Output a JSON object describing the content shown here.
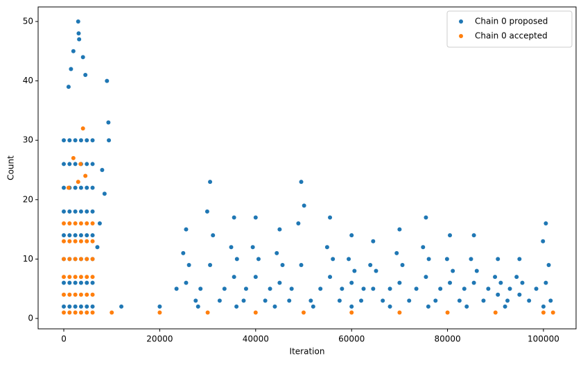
{
  "chart_data": {
    "type": "scatter",
    "x_label": "Iteration",
    "y_label": "Count",
    "xlim": [
      -5350,
      106800
    ],
    "ylim": [
      -1.75,
      52.45
    ],
    "xticks": [
      0,
      20000,
      40000,
      60000,
      80000,
      100000
    ],
    "yticks": [
      0,
      10,
      20,
      30,
      40,
      50
    ],
    "grid": false,
    "legend": "upper right",
    "series": [
      {
        "name": "Chain 0 proposed",
        "color": "#1f77b4",
        "x": [
          0,
          0,
          0,
          0,
          0,
          0,
          0,
          0,
          1200,
          1200,
          1200,
          1200,
          1200,
          1200,
          1200,
          1200,
          2400,
          2400,
          2400,
          2400,
          2400,
          2400,
          2400,
          2400,
          3600,
          3600,
          3600,
          3600,
          3600,
          3600,
          3600,
          3600,
          4800,
          4800,
          4800,
          4800,
          4800,
          4800,
          4800,
          4800,
          6000,
          6000,
          6000,
          6000,
          6000,
          6000,
          6000,
          6000,
          1500,
          2000,
          3000,
          3100,
          3200,
          4000,
          4500,
          1000,
          9000,
          9300,
          9400,
          8000,
          8500,
          7000,
          7500,
          25500,
          24900,
          26100,
          25500,
          23500,
          27500,
          30500,
          29900,
          31100,
          30500,
          28500,
          32500,
          35500,
          34900,
          36100,
          35500,
          33500,
          37500,
          40000,
          39400,
          40600,
          40000,
          38000,
          42000,
          45000,
          44400,
          45600,
          45000,
          43000,
          47000,
          49500,
          48900,
          50100,
          49500,
          47500,
          51500,
          55500,
          54900,
          56100,
          55500,
          53500,
          57500,
          60000,
          59400,
          60600,
          60000,
          58000,
          62000,
          64500,
          63900,
          65100,
          64500,
          62500,
          66500,
          70000,
          69400,
          70600,
          70000,
          68000,
          72000,
          75500,
          74900,
          76100,
          75500,
          73500,
          77500,
          80500,
          79900,
          81100,
          80500,
          78500,
          82500,
          85500,
          84900,
          86100,
          85500,
          83500,
          87500,
          90500,
          89900,
          91100,
          90500,
          88500,
          92500,
          95000,
          94400,
          95600,
          95000,
          93000,
          97000,
          100500,
          99900,
          101100,
          100500,
          98500,
          101500,
          12000,
          20000,
          28000,
          36000,
          44000,
          52000,
          60000,
          68000,
          76000,
          84000,
          92000,
          100000
        ],
        "values": [
          2,
          6,
          10,
          14,
          18,
          22,
          26,
          30,
          2,
          6,
          10,
          14,
          18,
          22,
          26,
          30,
          2,
          6,
          10,
          14,
          18,
          22,
          26,
          30,
          2,
          6,
          10,
          14,
          18,
          22,
          26,
          30,
          2,
          6,
          10,
          14,
          18,
          22,
          26,
          30,
          2,
          6,
          10,
          14,
          18,
          22,
          26,
          30,
          42,
          45,
          50,
          48,
          47,
          44,
          41,
          39,
          40,
          33,
          30,
          25,
          21,
          12,
          16,
          15,
          11,
          9,
          6,
          5,
          3,
          23,
          18,
          14,
          9,
          5,
          3,
          17,
          12,
          10,
          7,
          5,
          3,
          17,
          12,
          10,
          7,
          5,
          3,
          15,
          11,
          9,
          6,
          5,
          3,
          23,
          16,
          19,
          9,
          5,
          3,
          17,
          12,
          10,
          7,
          5,
          3,
          14,
          10,
          8,
          6,
          5,
          3,
          13,
          9,
          8,
          5,
          5,
          3,
          15,
          11,
          9,
          6,
          5,
          3,
          17,
          12,
          10,
          7,
          5,
          3,
          14,
          10,
          8,
          6,
          5,
          3,
          14,
          10,
          8,
          6,
          5,
          3,
          10,
          7,
          6,
          4,
          5,
          3,
          10,
          7,
          6,
          4,
          5,
          3,
          16,
          13,
          9,
          6,
          5,
          3,
          2,
          2,
          2,
          2,
          2,
          2,
          2,
          2,
          2,
          2,
          2,
          2
        ]
      },
      {
        "name": "Chain 0 accepted",
        "color": "#ff7f0e",
        "x": [
          0,
          0,
          0,
          0,
          0,
          0,
          1200,
          1200,
          1200,
          1200,
          1200,
          1200,
          2400,
          2400,
          2400,
          2400,
          2400,
          2400,
          3600,
          3600,
          3600,
          3600,
          3600,
          3600,
          4800,
          4800,
          4800,
          4800,
          4800,
          4800,
          6000,
          6000,
          6000,
          6000,
          6000,
          6000,
          4000,
          2000,
          3500,
          4500,
          1000,
          3000,
          10000,
          20000,
          30000,
          40000,
          50000,
          60000,
          70000,
          80000,
          90000,
          100000,
          102000
        ],
        "values": [
          1,
          4,
          7,
          10,
          13,
          16,
          1,
          4,
          7,
          10,
          13,
          16,
          1,
          4,
          7,
          10,
          13,
          16,
          1,
          4,
          7,
          10,
          13,
          16,
          1,
          4,
          7,
          10,
          13,
          16,
          1,
          4,
          7,
          10,
          13,
          16,
          32,
          27,
          26,
          24,
          22,
          23,
          1,
          1,
          1,
          1,
          1,
          1,
          1,
          1,
          1,
          1,
          1
        ]
      }
    ]
  }
}
